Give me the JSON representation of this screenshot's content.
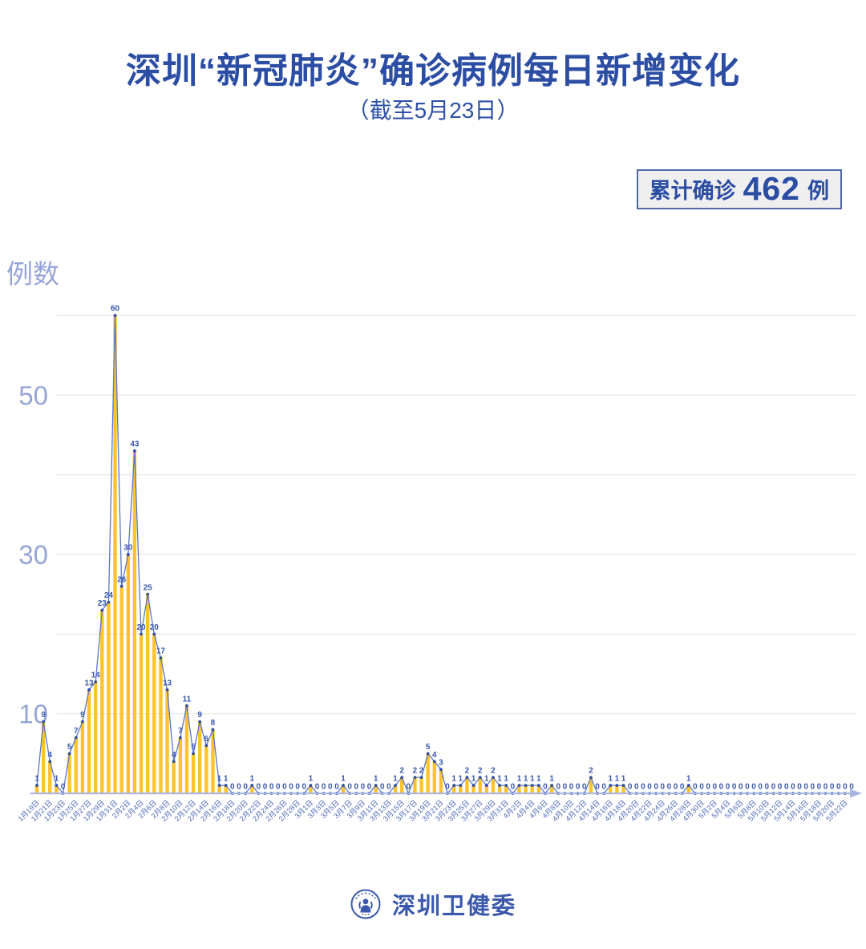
{
  "header": {
    "title": "深圳“新冠肺炎”确诊病例每日新增变化",
    "subtitle": "（截至5月23日）"
  },
  "badge": {
    "label": "累计确诊",
    "count": "462",
    "unit": "例"
  },
  "footer": {
    "brand": "深圳卫健委"
  },
  "colors": {
    "title_blue": "#2b4da3",
    "bar_yellow": "#ffc32b",
    "line_blue": "#5b76c7",
    "marker_blue": "#32509e",
    "value_label_blue": "#3a57ad",
    "x_tick_blue": "#4a66b8",
    "y_tick_periwinkle": "#96a5d9",
    "axis_periwinkle": "#a9b6e4",
    "gridline_gray": "#e7e7e7",
    "badge_bg": "#efefef",
    "badge_border": "#5268a8"
  },
  "chart_data": {
    "type": "bar",
    "overlay": "line-with-markers",
    "title": "深圳“新冠肺炎”确诊病例每日新增变化（截至5月23日）",
    "ylabel": "例数",
    "xlabel": "",
    "x_start": "1月19日",
    "x_end": "5月23日",
    "x_tick_every": 2,
    "x_tick_labels": [
      "1月19日",
      "1月21日",
      "1月23日",
      "1月25日",
      "1月27日",
      "1月29日",
      "1月31日",
      "2月2日",
      "2月4日",
      "2月6日",
      "2月8日",
      "2月10日",
      "2月12日",
      "2月14日",
      "2月16日",
      "2月18日",
      "2月20日",
      "2月22日",
      "2月24日",
      "2月26日",
      "2月28日",
      "3月1日",
      "3月3日",
      "3月5日",
      "3月7日",
      "3月9日",
      "3月11日",
      "3月13日",
      "3月15日",
      "3月17日",
      "3月19日",
      "3月21日",
      "3月23日",
      "3月25日",
      "3月27日",
      "3月29日",
      "3月31日",
      "4月2日",
      "4月4日",
      "4月6日",
      "4月8日",
      "4月10日",
      "4月12日",
      "4月14日",
      "4月16日",
      "4月18日",
      "4月20日",
      "4月22日",
      "4月24日",
      "4月26日",
      "4月28日",
      "4月30日",
      "5月2日",
      "5月4日",
      "5月6日",
      "5月8日",
      "5月10日",
      "5月12日",
      "5月14日",
      "5月16日",
      "5月18日",
      "5月20日",
      "5月22日"
    ],
    "values": [
      1,
      9,
      4,
      1,
      0,
      5,
      7,
      9,
      13,
      14,
      23,
      24,
      60,
      26,
      30,
      43,
      20,
      25,
      20,
      17,
      13,
      4,
      7,
      11,
      5,
      9,
      6,
      8,
      1,
      1,
      0,
      0,
      0,
      1,
      0,
      0,
      0,
      0,
      0,
      0,
      0,
      0,
      1,
      0,
      0,
      0,
      0,
      1,
      0,
      0,
      0,
      0,
      1,
      0,
      0,
      1,
      2,
      0,
      2,
      2,
      5,
      4,
      3,
      0,
      1,
      1,
      2,
      1,
      2,
      1,
      2,
      1,
      1,
      0,
      1,
      1,
      1,
      1,
      0,
      1,
      0,
      0,
      0,
      0,
      0,
      2,
      0,
      0,
      1,
      1,
      1,
      0,
      0,
      0,
      0,
      0,
      0,
      0,
      0,
      0,
      1,
      0,
      0,
      0,
      0,
      0,
      0,
      0,
      0,
      0,
      0,
      0,
      0,
      0,
      0,
      0,
      0,
      0,
      0,
      0,
      0,
      0,
      0,
      0,
      0,
      0
    ],
    "values_total": 462,
    "gridlines": [
      10,
      20,
      30,
      40,
      50,
      60
    ],
    "y_tick_labels": [
      10,
      30,
      50
    ],
    "ylim": [
      0,
      62
    ],
    "grid": "horizontal-only",
    "legend": "none"
  }
}
